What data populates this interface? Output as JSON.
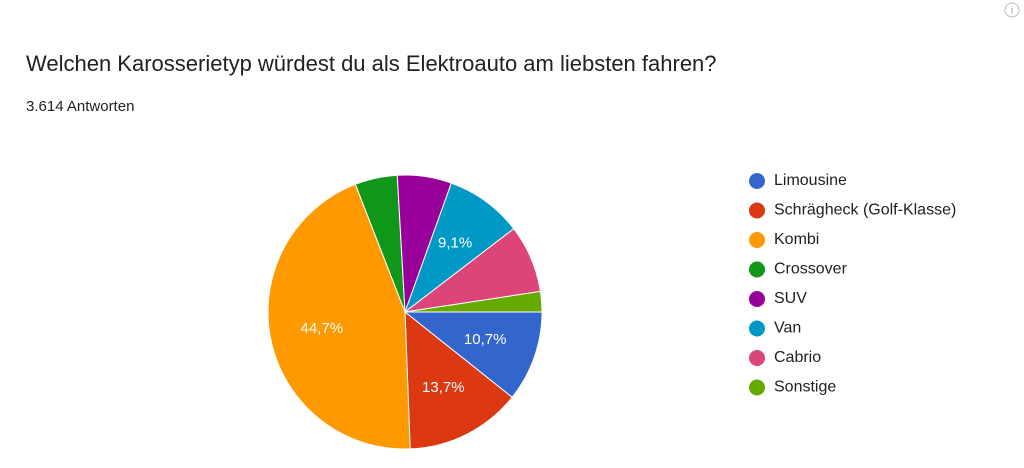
{
  "chart_data": {
    "type": "pie",
    "title": "Welchen Karosserietyp würdest du als Elektroauto am liebsten fahren?",
    "subtitle": "3.614 Antworten",
    "info_icon": "i",
    "categories": [
      "Limousine",
      "Schrägheck (Golf-Klasse)",
      "Kombi",
      "Crossover",
      "SUV",
      "Van",
      "Cabrio",
      "Sonstige"
    ],
    "values": [
      10.7,
      13.7,
      44.7,
      5.0,
      6.4,
      9.1,
      8.0,
      2.4
    ],
    "value_labels": [
      "10,7%",
      "13,7%",
      "44,7%",
      null,
      null,
      "9,1%",
      null,
      null
    ],
    "colors": [
      "#3366cc",
      "#dc3912",
      "#ff9900",
      "#109618",
      "#990099",
      "#0099c6",
      "#dd4477",
      "#66aa00"
    ],
    "legend": "right"
  }
}
